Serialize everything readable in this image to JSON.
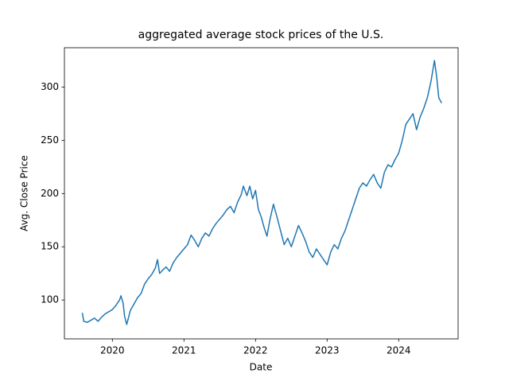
{
  "chart_data": {
    "type": "line",
    "title": "aggregated average stock prices of the U.S.",
    "xlabel": "Date",
    "ylabel": "Avg. Close Price",
    "x": [
      2019.58,
      2019.6,
      2019.65,
      2019.7,
      2019.75,
      2019.8,
      2019.85,
      2019.9,
      2019.95,
      2020.0,
      2020.05,
      2020.1,
      2020.12,
      2020.15,
      2020.17,
      2020.2,
      2020.22,
      2020.25,
      2020.3,
      2020.35,
      2020.4,
      2020.45,
      2020.5,
      2020.55,
      2020.6,
      2020.63,
      2020.66,
      2020.7,
      2020.75,
      2020.8,
      2020.85,
      2020.9,
      2020.95,
      2021.0,
      2021.05,
      2021.1,
      2021.15,
      2021.2,
      2021.25,
      2021.3,
      2021.35,
      2021.4,
      2021.45,
      2021.5,
      2021.55,
      2021.6,
      2021.65,
      2021.7,
      2021.75,
      2021.8,
      2021.83,
      2021.88,
      2021.92,
      2021.96,
      2022.0,
      2022.04,
      2022.08,
      2022.12,
      2022.16,
      2022.2,
      2022.25,
      2022.3,
      2022.35,
      2022.4,
      2022.45,
      2022.5,
      2022.55,
      2022.6,
      2022.65,
      2022.7,
      2022.75,
      2022.8,
      2022.85,
      2022.9,
      2022.95,
      2023.0,
      2023.05,
      2023.1,
      2023.15,
      2023.2,
      2023.25,
      2023.3,
      2023.35,
      2023.4,
      2023.45,
      2023.5,
      2023.55,
      2023.6,
      2023.65,
      2023.7,
      2023.75,
      2023.8,
      2023.85,
      2023.9,
      2023.95,
      2024.0,
      2024.05,
      2024.1,
      2024.15,
      2024.2,
      2024.25,
      2024.3,
      2024.35,
      2024.4,
      2024.45,
      2024.5,
      2024.53,
      2024.56,
      2024.6
    ],
    "series": [
      {
        "name": "Avg. Close Price",
        "color": "#1f77b4",
        "values": [
          88,
          80,
          79,
          81,
          83,
          80,
          84,
          87,
          89,
          91,
          95,
          100,
          104,
          97,
          85,
          77,
          82,
          90,
          96,
          102,
          106,
          115,
          120,
          124,
          130,
          138,
          125,
          128,
          131,
          127,
          135,
          140,
          144,
          148,
          152,
          161,
          156,
          150,
          158,
          163,
          160,
          167,
          172,
          176,
          180,
          185,
          188,
          182,
          192,
          199,
          207,
          198,
          207,
          195,
          203,
          185,
          178,
          168,
          160,
          175,
          190,
          178,
          165,
          152,
          158,
          150,
          160,
          170,
          163,
          155,
          145,
          140,
          148,
          143,
          138,
          133,
          145,
          152,
          148,
          158,
          165,
          175,
          185,
          195,
          205,
          210,
          207,
          213,
          218,
          210,
          205,
          220,
          227,
          225,
          232,
          238,
          250,
          265,
          270,
          275,
          260,
          272,
          280,
          290,
          305,
          325,
          310,
          290,
          285
        ]
      }
    ],
    "xlim": [
      2019.33,
      2024.83
    ],
    "xticks": [
      2020,
      2021,
      2022,
      2023,
      2024
    ],
    "ylim": [
      63.5,
      337
    ],
    "yticks": [
      100,
      150,
      200,
      250,
      300
    ]
  }
}
